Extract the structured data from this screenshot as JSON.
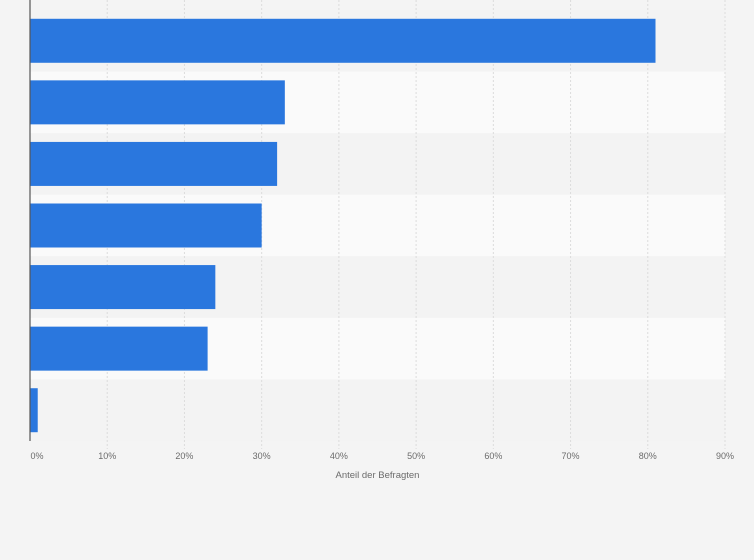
{
  "chart_data": {
    "type": "bar",
    "orientation": "horizontal",
    "categories": [
      "",
      "",
      "",
      "",
      "",
      "",
      ""
    ],
    "values": [
      81,
      33,
      32,
      30,
      24,
      23,
      1
    ],
    "xlabel": "Anteil der Befragten",
    "ylabel": "",
    "xlim": [
      0,
      90
    ],
    "x_ticks": [
      0,
      10,
      20,
      30,
      40,
      50,
      60,
      70,
      80,
      90
    ],
    "x_tick_labels": [
      "0%",
      "10%",
      "20%",
      "30%",
      "40%",
      "50%",
      "60%",
      "70%",
      "80%",
      "90%"
    ],
    "grid": true,
    "legend": "none",
    "colors": {
      "bar": "#2a77de",
      "band_light": "#fafafa",
      "band_dark": "#f3f3f3",
      "grid": "#dcdcdc",
      "axis": "#555555",
      "background": "#f4f4f4"
    }
  }
}
